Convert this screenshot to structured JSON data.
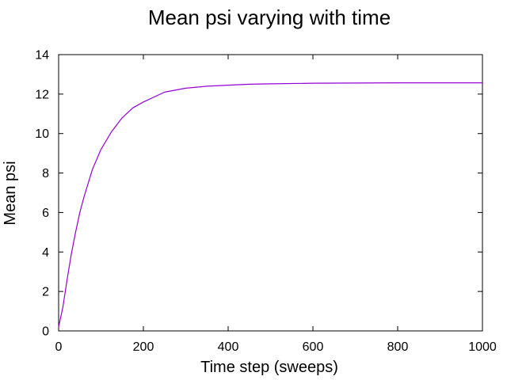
{
  "chart_data": {
    "type": "line",
    "title": "Mean psi varying with time",
    "xlabel": "Time step (sweeps)",
    "ylabel": "Mean psi",
    "xlim": [
      0,
      1000
    ],
    "ylim": [
      0,
      14
    ],
    "x_ticks": [
      0,
      200,
      400,
      600,
      800,
      1000
    ],
    "y_ticks": [
      0,
      2,
      4,
      6,
      8,
      10,
      12,
      14
    ],
    "grid": false,
    "legend": "none",
    "series": [
      {
        "color": "#9400d3",
        "x": [
          0,
          10,
          20,
          30,
          40,
          50,
          60,
          80,
          100,
          125,
          150,
          175,
          200,
          250,
          300,
          350,
          400,
          450,
          500,
          600,
          700,
          800,
          900,
          1000
        ],
        "y": [
          0.2,
          1.2,
          2.6,
          3.9,
          5.0,
          6.0,
          6.8,
          8.2,
          9.2,
          10.1,
          10.8,
          11.3,
          11.6,
          12.1,
          12.3,
          12.4,
          12.45,
          12.5,
          12.52,
          12.55,
          12.56,
          12.57,
          12.57,
          12.57
        ]
      }
    ]
  }
}
